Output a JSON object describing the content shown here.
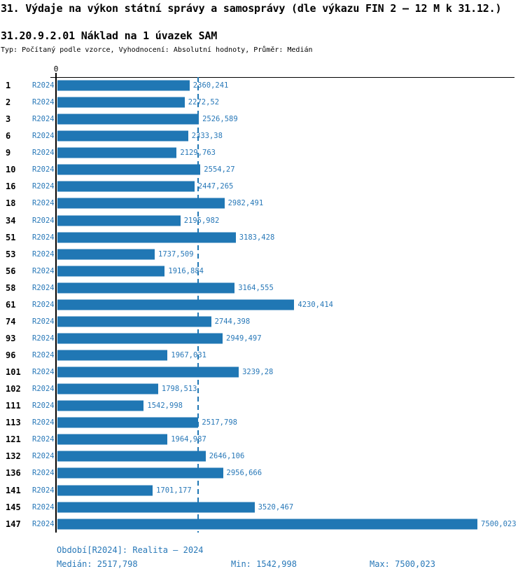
{
  "header": {
    "title": "31. Výdaje na výkon státní správy a samosprávy (dle výkazu FIN 2 – 12 M k 31.12.)",
    "subtitle": "31.20.9.2.01 Náklad na 1 úvazek SAM",
    "meta": "Typ: Počítaný podle vzorce, Vyhodnocení: Absolutní hodnoty, Průměr: Medián"
  },
  "chart_data": {
    "type": "bar",
    "orientation": "horizontal",
    "title": "31.20.9.2.01 Náklad na 1 úvazek SAM",
    "series_label": "R2024",
    "origin_tick_label": "0",
    "xlim": [
      0,
      7500.023
    ],
    "grid": false,
    "median": 2517.798,
    "categories": [
      "1",
      "2",
      "3",
      "6",
      "9",
      "10",
      "16",
      "18",
      "34",
      "51",
      "53",
      "56",
      "58",
      "61",
      "74",
      "93",
      "96",
      "101",
      "102",
      "111",
      "113",
      "121",
      "132",
      "136",
      "141",
      "145",
      "147"
    ],
    "values": [
      2360.241,
      2272.52,
      2526.589,
      2333.38,
      2129.763,
      2554.27,
      2447.265,
      2982.491,
      2195.982,
      3183.428,
      1737.509,
      1916.884,
      3164.555,
      4230.414,
      2744.398,
      2949.497,
      1967.031,
      3239.28,
      1798.513,
      1542.998,
      2517.798,
      1964.987,
      2646.106,
      2956.666,
      1701.177,
      3520.467,
      7500.023
    ],
    "value_labels": [
      "2360,241",
      "2272,52",
      "2526,589",
      "2333,38",
      "2129,763",
      "2554,27",
      "2447,265",
      "2982,491",
      "2195,982",
      "3183,428",
      "1737,509",
      "1916,884",
      "3164,555",
      "4230,414",
      "2744,398",
      "2949,497",
      "1967,031",
      "3239,28",
      "1798,513",
      "1542,998",
      "2517,798",
      "1964,987",
      "2646,106",
      "2956,666",
      "1701,177",
      "3520,467",
      "7500,023"
    ]
  },
  "footer": {
    "period": "Období[R2024]: Realita – 2024",
    "median": "Medián: 2517,798",
    "min": "Min: 1542,998",
    "max": "Max: 7500,023"
  },
  "colors": {
    "bar": "#2077b4",
    "text_blue": "#2878b8",
    "axis": "#000000"
  }
}
